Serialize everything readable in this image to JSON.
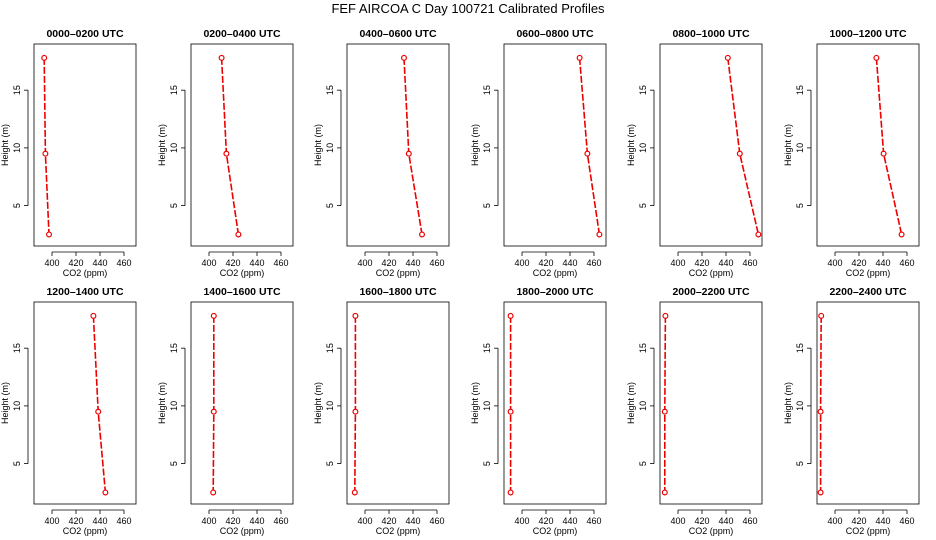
{
  "title": "FEF AIRCOA C  Day 100721  Calibrated Profiles",
  "chart_data": [
    {
      "type": "line",
      "title": "0000–0200 UTC",
      "xlabel": "CO2 (ppm)",
      "ylabel": "Height (m)",
      "xlim": [
        385,
        470
      ],
      "ylim": [
        1.5,
        19
      ],
      "xticks": [
        400,
        420,
        440,
        460
      ],
      "yticks": [
        5,
        10,
        15
      ],
      "x": [
        393.5,
        394.5,
        397.5
      ],
      "y": [
        17.8,
        9.5,
        2.5
      ]
    },
    {
      "type": "line",
      "title": "0200–0400 UTC",
      "xlabel": "CO2 (ppm)",
      "ylabel": "Height (m)",
      "xlim": [
        385,
        470
      ],
      "ylim": [
        1.5,
        19
      ],
      "xticks": [
        400,
        420,
        440,
        460
      ],
      "yticks": [
        5,
        10,
        15
      ],
      "x": [
        410.5,
        414.5,
        424.5
      ],
      "y": [
        17.8,
        9.5,
        2.5
      ]
    },
    {
      "type": "line",
      "title": "0400–0600 UTC",
      "xlabel": "CO2 (ppm)",
      "ylabel": "Height (m)",
      "xlim": [
        385,
        470
      ],
      "ylim": [
        1.5,
        19
      ],
      "xticks": [
        400,
        420,
        440,
        460
      ],
      "yticks": [
        5,
        10,
        15
      ],
      "x": [
        432.5,
        436.5,
        447.5
      ],
      "y": [
        17.8,
        9.5,
        2.5
      ]
    },
    {
      "type": "line",
      "title": "0600–0800 UTC",
      "xlabel": "CO2 (ppm)",
      "ylabel": "Height (m)",
      "xlim": [
        385,
        470
      ],
      "ylim": [
        1.5,
        19
      ],
      "xticks": [
        400,
        420,
        440,
        460
      ],
      "yticks": [
        5,
        10,
        15
      ],
      "x": [
        448.0,
        454.5,
        464.5
      ],
      "y": [
        17.8,
        9.5,
        2.5
      ]
    },
    {
      "type": "line",
      "title": "0800–1000 UTC",
      "xlabel": "CO2 (ppm)",
      "ylabel": "Height (m)",
      "xlim": [
        385,
        470
      ],
      "ylim": [
        1.5,
        19
      ],
      "xticks": [
        400,
        420,
        440,
        460
      ],
      "yticks": [
        5,
        10,
        15
      ],
      "x": [
        441.5,
        451.5,
        467.0
      ],
      "y": [
        17.8,
        9.5,
        2.5
      ]
    },
    {
      "type": "line",
      "title": "1000–1200 UTC",
      "xlabel": "CO2 (ppm)",
      "ylabel": "Height (m)",
      "xlim": [
        385,
        470
      ],
      "ylim": [
        1.5,
        19
      ],
      "xticks": [
        400,
        420,
        440,
        460
      ],
      "yticks": [
        5,
        10,
        15
      ],
      "x": [
        434.5,
        440.5,
        455.5
      ],
      "y": [
        17.8,
        9.5,
        2.5
      ]
    },
    {
      "type": "line",
      "title": "1200–1400 UTC",
      "xlabel": "CO2 (ppm)",
      "ylabel": "Height (m)",
      "xlim": [
        385,
        470
      ],
      "ylim": [
        1.5,
        19
      ],
      "xticks": [
        400,
        420,
        440,
        460
      ],
      "yticks": [
        5,
        10,
        15
      ],
      "x": [
        434.5,
        438.5,
        444.5
      ],
      "y": [
        17.8,
        9.5,
        2.5
      ]
    },
    {
      "type": "line",
      "title": "1400–1600 UTC",
      "xlabel": "CO2 (ppm)",
      "ylabel": "Height (m)",
      "xlim": [
        385,
        470
      ],
      "ylim": [
        1.5,
        19
      ],
      "xticks": [
        400,
        420,
        440,
        460
      ],
      "yticks": [
        5,
        10,
        15
      ],
      "x": [
        404.0,
        404.0,
        403.5
      ],
      "y": [
        17.8,
        9.5,
        2.5
      ]
    },
    {
      "type": "line",
      "title": "1600–1800 UTC",
      "xlabel": "CO2 (ppm)",
      "ylabel": "Height (m)",
      "xlim": [
        385,
        470
      ],
      "ylim": [
        1.5,
        19
      ],
      "xticks": [
        400,
        420,
        440,
        460
      ],
      "yticks": [
        5,
        10,
        15
      ],
      "x": [
        392.0,
        392.0,
        391.5
      ],
      "y": [
        17.8,
        9.5,
        2.5
      ]
    },
    {
      "type": "line",
      "title": "1800–2000 UTC",
      "xlabel": "CO2 (ppm)",
      "ylabel": "Height (m)",
      "xlim": [
        385,
        470
      ],
      "ylim": [
        1.5,
        19
      ],
      "xticks": [
        400,
        420,
        440,
        460
      ],
      "yticks": [
        5,
        10,
        15
      ],
      "x": [
        390.5,
        390.5,
        390.5
      ],
      "y": [
        17.8,
        9.5,
        2.5
      ]
    },
    {
      "type": "line",
      "title": "2000–2200 UTC",
      "xlabel": "CO2 (ppm)",
      "ylabel": "Height (m)",
      "xlim": [
        385,
        470
      ],
      "ylim": [
        1.5,
        19
      ],
      "xticks": [
        400,
        420,
        440,
        460
      ],
      "yticks": [
        5,
        10,
        15
      ],
      "x": [
        389.5,
        389.0,
        389.0
      ],
      "y": [
        17.8,
        9.5,
        2.5
      ]
    },
    {
      "type": "line",
      "title": "2200–2400 UTC",
      "xlabel": "CO2 (ppm)",
      "ylabel": "Height (m)",
      "xlim": [
        385,
        470
      ],
      "ylim": [
        1.5,
        19
      ],
      "xticks": [
        400,
        420,
        440,
        460
      ],
      "yticks": [
        5,
        10,
        15
      ],
      "x": [
        388.5,
        388.0,
        388.0
      ],
      "y": [
        17.8,
        9.5,
        2.5
      ]
    }
  ]
}
